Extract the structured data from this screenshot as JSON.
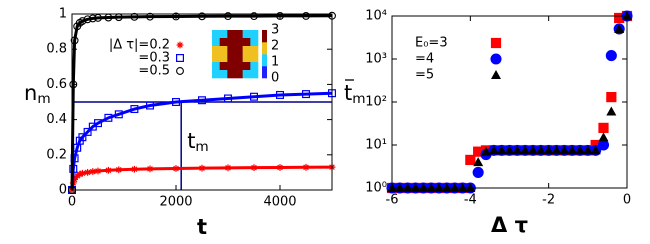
{
  "chart_data": [
    {
      "type": "scatter",
      "x_label": "t",
      "y_label": "n",
      "y_label_sub": "m",
      "xlim": [
        0,
        5000
      ],
      "xticks": [
        0,
        2000,
        4000
      ],
      "ylim": [
        0,
        1
      ],
      "yticks": [
        0,
        0.2,
        0.4,
        0.6,
        0.8,
        1
      ],
      "connect_lines": true,
      "x": [
        0,
        25,
        50,
        100,
        150,
        200,
        300,
        400,
        500,
        700,
        900,
        1200,
        1500,
        2000,
        2500,
        3000,
        3500,
        4000,
        4500,
        5000
      ],
      "series": [
        {
          "name": "|Δ τ|=0.2",
          "color": "#ff0000",
          "marker": "star",
          "values": [
            0,
            0.04,
            0.06,
            0.08,
            0.09,
            0.095,
            0.1,
            0.105,
            0.108,
            0.112,
            0.115,
            0.118,
            0.12,
            0.122,
            0.124,
            0.126,
            0.127,
            0.128,
            0.129,
            0.13
          ]
        },
        {
          "name": "=0.3",
          "color": "#0000ff",
          "marker": "open-square",
          "values": [
            0,
            0.12,
            0.18,
            0.24,
            0.28,
            0.3,
            0.33,
            0.36,
            0.38,
            0.41,
            0.43,
            0.46,
            0.48,
            0.5,
            0.51,
            0.52,
            0.53,
            0.54,
            0.545,
            0.55
          ]
        },
        {
          "name": "=0.5",
          "color": "#000000",
          "marker": "open-circle",
          "values": [
            0,
            0.6,
            0.85,
            0.93,
            0.95,
            0.96,
            0.97,
            0.975,
            0.978,
            0.98,
            0.982,
            0.984,
            0.985,
            0.986,
            0.987,
            0.988,
            0.988,
            0.989,
            0.989,
            0.99
          ]
        }
      ],
      "guide": {
        "t": 2100,
        "n": 0.5,
        "label": "t",
        "label_sub": "m",
        "color": "#00008b"
      },
      "inset": {
        "matrix": [
          [
            1,
            1,
            3,
            3,
            1,
            1
          ],
          [
            1,
            3,
            3,
            3,
            3,
            1
          ],
          [
            2,
            2,
            3,
            3,
            2,
            2
          ],
          [
            2,
            2,
            3,
            3,
            2,
            2
          ],
          [
            1,
            3,
            3,
            3,
            3,
            1
          ],
          [
            1,
            1,
            3,
            3,
            1,
            1
          ]
        ],
        "colormap": [
          "#2020ff",
          "#20d0ff",
          "#f0c020",
          "#800000"
        ],
        "colorbar_ticks": [
          0,
          1,
          2,
          3
        ]
      }
    },
    {
      "type": "scatter",
      "x_label": "Δ τ",
      "y_label": "t",
      "y_label_sub": "m",
      "xlim": [
        -6,
        0
      ],
      "xticks": [
        -6,
        -4,
        -2,
        0
      ],
      "ylim": [
        1,
        10000
      ],
      "log_y": true,
      "yticks": [
        {
          "value": 1,
          "label": "10⁰"
        },
        {
          "value": 10,
          "label": "10¹"
        },
        {
          "value": 100,
          "label": "10²"
        },
        {
          "value": 1000,
          "label": "10³"
        },
        {
          "value": 10000,
          "label": "10⁴"
        }
      ],
      "x": [
        -6,
        -5.8,
        -5.6,
        -5.4,
        -5.2,
        -5,
        -4.8,
        -4.6,
        -4.4,
        -4.2,
        -4,
        -3.8,
        -3.6,
        -3.4,
        -3.2,
        -3,
        -2.8,
        -2.6,
        -2.4,
        -2.2,
        -2,
        -1.8,
        -1.6,
        -1.4,
        -1.2,
        -1,
        -0.8,
        -0.6,
        -0.4,
        -0.2,
        0
      ],
      "series": [
        {
          "name": "E₀=3",
          "color": "#ff0000",
          "marker": "square",
          "values": [
            1,
            1,
            1,
            1,
            1,
            1,
            1,
            1,
            1,
            1,
            4.5,
            7,
            7.5,
            7.5,
            7.5,
            7.5,
            7.5,
            7.5,
            7.5,
            7.5,
            7.5,
            7.5,
            7.5,
            7.5,
            7.5,
            7.5,
            10,
            25,
            130,
            9000,
            10000
          ]
        },
        {
          "name": "=4",
          "color": "#0000ff",
          "marker": "circle",
          "values": [
            1,
            1,
            1,
            1,
            1,
            1,
            1,
            1,
            1,
            1,
            1,
            2.3,
            6,
            7.5,
            7.5,
            7.5,
            7.5,
            7.5,
            7.5,
            7.5,
            7.5,
            7.5,
            7.5,
            7.5,
            7.5,
            7.5,
            7.5,
            10,
            1200,
            5000,
            10000
          ]
        },
        {
          "name": "=5",
          "color": "#000000",
          "marker": "triangle",
          "values": [
            1,
            1,
            1,
            1,
            1,
            1,
            1,
            1,
            1,
            1,
            1,
            4,
            7,
            7.5,
            7.5,
            7.5,
            7.5,
            7.5,
            7.5,
            7.5,
            7.5,
            7.5,
            7.5,
            7.5,
            7.5,
            7.5,
            7.5,
            15,
            60,
            5000,
            10000
          ]
        }
      ]
    }
  ]
}
